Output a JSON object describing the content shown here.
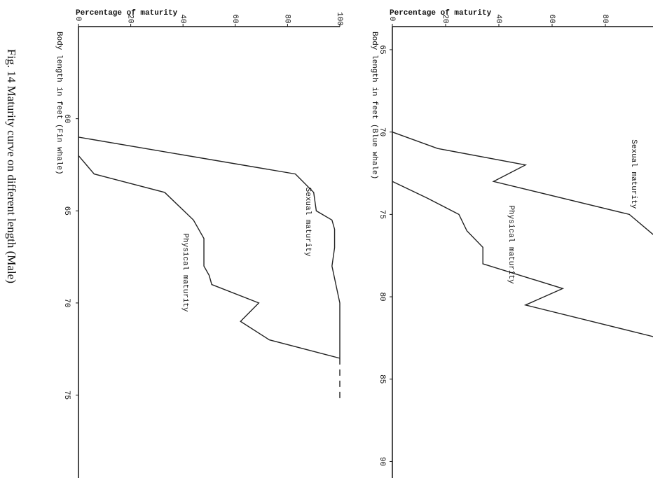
{
  "caption": "Fig. 14  Maturity curve on different length (Male)",
  "chart_data": [
    {
      "type": "line",
      "y_label": "Percentage of maturity",
      "x_label": "Body length in feet (Fin whale)",
      "xlim": [
        55,
        79.5
      ],
      "xticks": [
        60,
        65,
        70,
        75
      ],
      "ylim": [
        0,
        100
      ],
      "yticks": [
        0,
        20,
        40,
        60,
        80,
        100
      ],
      "series": [
        {
          "name": "Sexual maturity",
          "color": "#222222",
          "x": [
            61,
            63,
            64,
            65,
            65.5,
            66,
            67,
            68,
            70,
            71,
            73
          ],
          "values": [
            0,
            83,
            90,
            91,
            97,
            98,
            98,
            97,
            100,
            100,
            100
          ]
        },
        {
          "name": "Physical maturity",
          "color": "#222222",
          "x": [
            62,
            63,
            64,
            65.5,
            66.5,
            68,
            68.5,
            69,
            70,
            71,
            72,
            73
          ],
          "values": [
            0,
            6,
            33,
            44,
            48,
            48,
            50,
            51,
            69,
            62,
            73,
            100
          ]
        },
        {
          "color": "#222222",
          "dash": true,
          "x": [
            73,
            75.3
          ],
          "values": [
            100,
            100
          ]
        }
      ]
    },
    {
      "type": "line",
      "y_label": "Percentage of maturity",
      "x_label": "Body length in feet (Blue whale)",
      "xlim": [
        63.6,
        91
      ],
      "xticks": [
        65,
        70,
        75,
        80,
        85,
        90
      ],
      "ylim": [
        0,
        100
      ],
      "yticks": [
        0,
        20,
        40,
        60,
        80
      ],
      "series": [
        {
          "name": "Sexual maturity",
          "color": "#222222",
          "x": [
            70,
            71,
            72,
            73,
            75,
            76.5
          ],
          "values": [
            0,
            17,
            50,
            38,
            89,
            100
          ]
        },
        {
          "name": "Physical maturity",
          "color": "#222222",
          "x": [
            73,
            74,
            75,
            76,
            77,
            78,
            79.5,
            80.5,
            82.5
          ],
          "values": [
            0,
            13,
            25,
            28,
            34,
            34,
            64,
            50,
            100
          ]
        }
      ]
    }
  ]
}
